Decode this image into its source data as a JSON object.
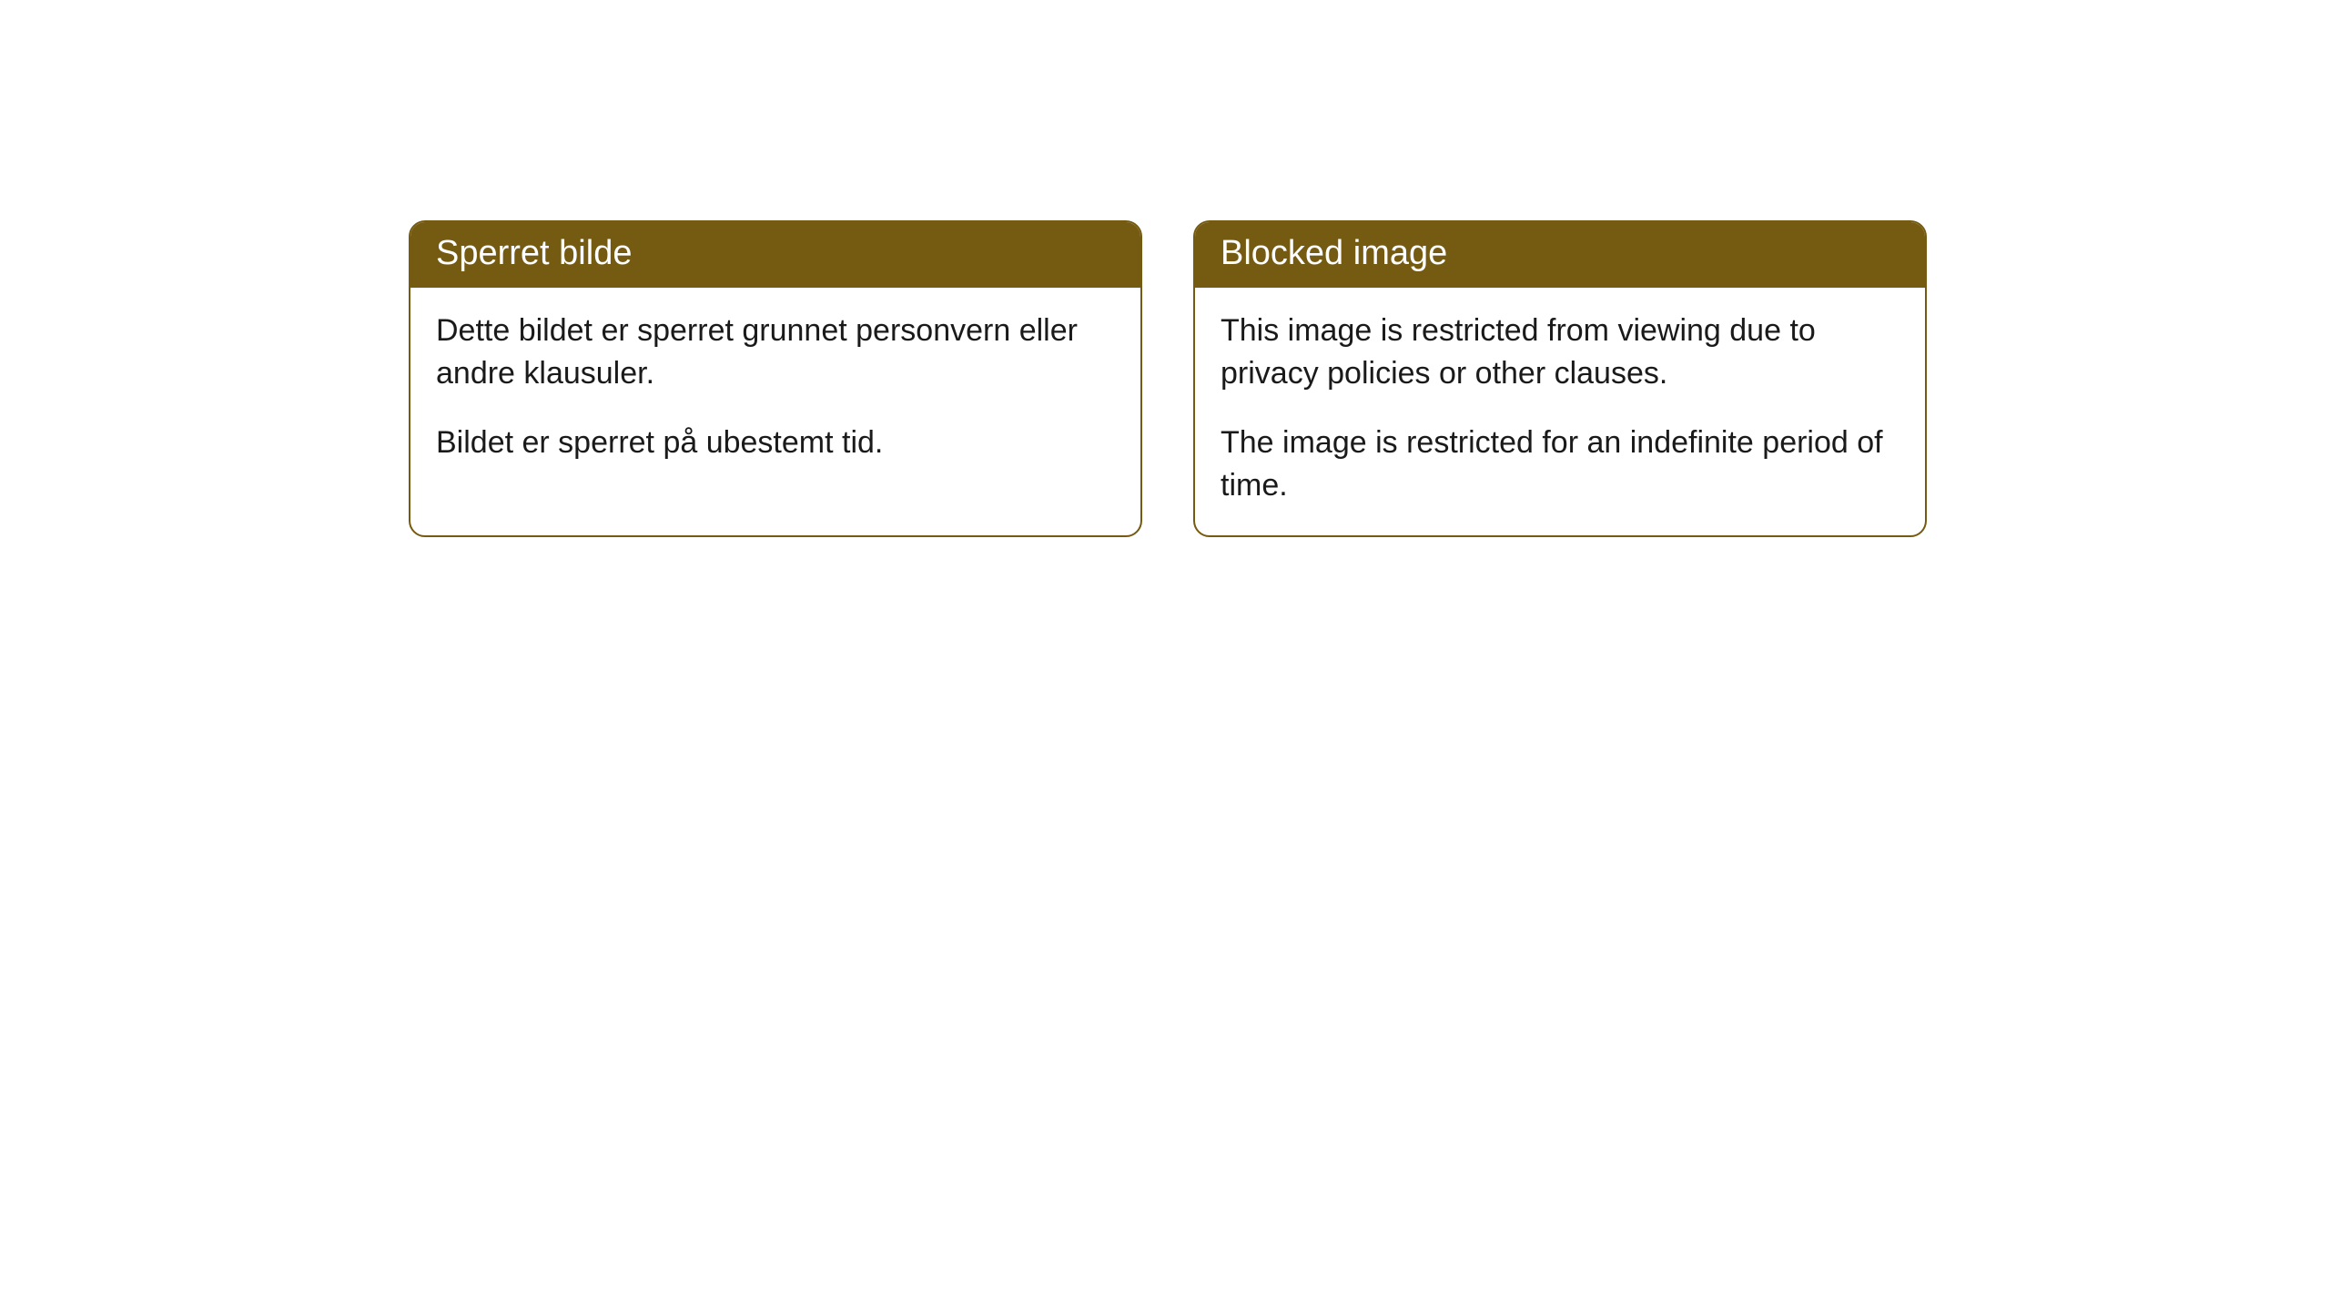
{
  "cards": [
    {
      "title": "Sperret bilde",
      "paragraph1": "Dette bildet er sperret grunnet personvern eller andre klausuler.",
      "paragraph2": "Bildet er sperret på ubestemt tid."
    },
    {
      "title": "Blocked image",
      "paragraph1": "This image is restricted from viewing due to privacy policies or other clauses.",
      "paragraph2": "The image is restricted for an indefinite period of time."
    }
  ],
  "styling": {
    "header_background": "#755a11",
    "header_text_color": "#ffffff",
    "border_color": "#755a11",
    "body_text_color": "#1a1a1a",
    "card_background": "#ffffff",
    "page_background": "#ffffff",
    "border_radius": 18,
    "header_fontsize": 38,
    "body_fontsize": 34
  }
}
